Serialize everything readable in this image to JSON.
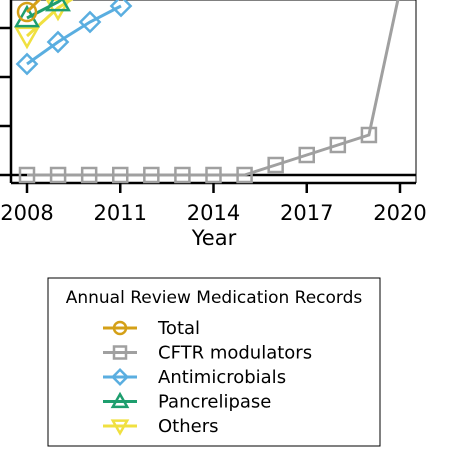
{
  "chart_data": {
    "type": "line",
    "title": "",
    "xlabel": "Year",
    "ylabel": "",
    "x": [
      2008,
      2009,
      2010,
      2011,
      2012,
      2013,
      2014,
      2015,
      2016,
      2017,
      2018,
      2019,
      2020
    ],
    "x_ticks": [
      "2008",
      "2011",
      "2014",
      "2017",
      "2020"
    ],
    "grid": false,
    "legend_position": "bottom",
    "series": [
      {
        "name": "Total",
        "color": "#D4A017",
        "marker": "circle",
        "x": [
          2008,
          2009
        ],
        "values": [
          null,
          null
        ]
      },
      {
        "name": "CFTR modulators",
        "color": "#A0A0A0",
        "marker": "square",
        "x": [
          2008,
          2009,
          2010,
          2011,
          2012,
          2013,
          2014,
          2015,
          2016,
          2017,
          2018,
          2019,
          2020
        ],
        "values": [
          0,
          0,
          0,
          0,
          0,
          0,
          0,
          0,
          1,
          2,
          3,
          4,
          null
        ]
      },
      {
        "name": "Antimicrobials",
        "color": "#5AAEE0",
        "marker": "diamond",
        "x": [
          2008,
          2009,
          2010,
          2011
        ],
        "values": [
          null,
          null,
          null,
          null
        ]
      },
      {
        "name": "Pancrelipase",
        "color": "#1E9E6E",
        "marker": "triangle-up",
        "x": [
          2008,
          2009
        ],
        "values": [
          null,
          null
        ]
      },
      {
        "name": "Others",
        "color": "#F0E040",
        "marker": "triangle-down",
        "x": [
          2008,
          2009
        ],
        "values": [
          null,
          null
        ]
      }
    ],
    "legend": {
      "title": "Annual Review Medication Records",
      "entries": [
        "Total",
        "CFTR modulators",
        "Antimicrobials",
        "Pancrelipase",
        "Others"
      ]
    }
  }
}
